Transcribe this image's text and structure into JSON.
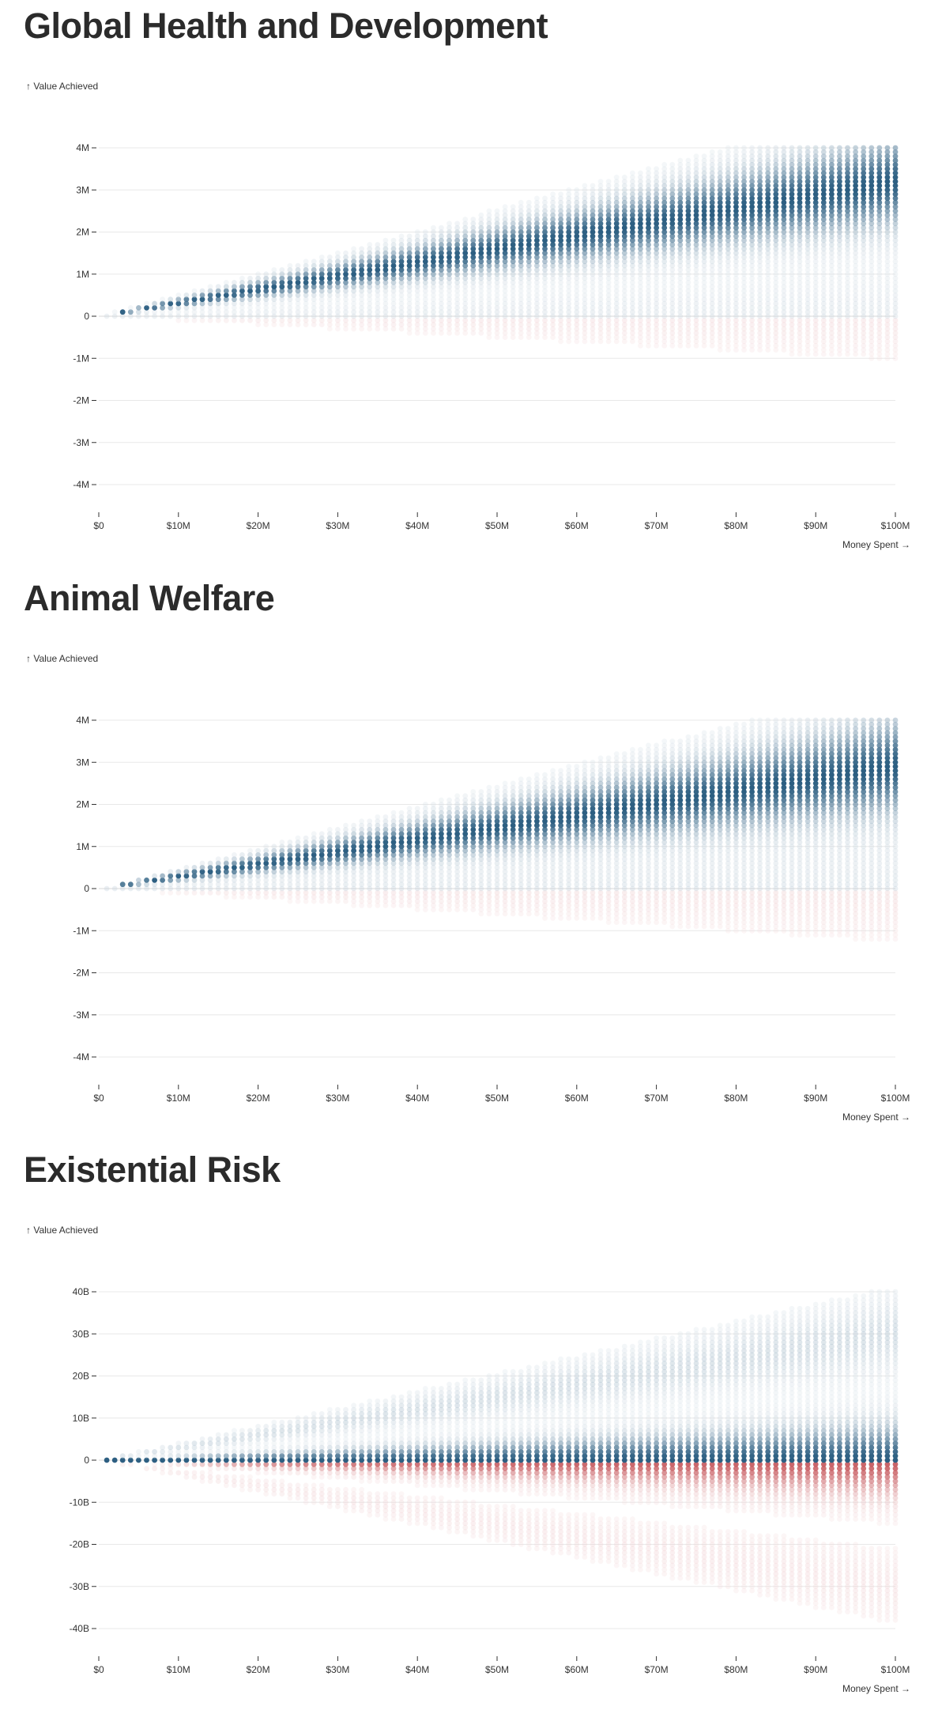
{
  "chart_data": [
    {
      "type": "scatter",
      "title": "Global Health and Development",
      "ylabel": "↑ Value Achieved",
      "xlabel": "Money Spent →",
      "xlim": [
        0,
        100000000
      ],
      "ylim": [
        -4000000,
        4000000
      ],
      "x_ticks": [
        "$0",
        "$10M",
        "$20M",
        "$30M",
        "$40M",
        "$50M",
        "$60M",
        "$70M",
        "$80M",
        "$90M",
        "$100M"
      ],
      "y_ticks": [
        "4M",
        "3M",
        "2M",
        "1M",
        "0",
        "-1M",
        "-2M",
        "-3M",
        "-4M"
      ],
      "y_tick_values": [
        4000000,
        3000000,
        2000000,
        1000000,
        0,
        -1000000,
        -2000000,
        -3000000,
        -4000000
      ],
      "x_step": 1000000,
      "distribution": {
        "modes": [
          {
            "center_per_dollar": 0.032,
            "sd_per_dollar": 0.0075,
            "sign": "positive",
            "weight": 1.0
          },
          {
            "center_per_dollar": 0.0,
            "sd_per_dollar": 0.007,
            "sign": "mixed",
            "weight": 0.12
          }
        ]
      },
      "colors": {
        "positive": "#2d5f82",
        "negative": "#c0464b"
      }
    },
    {
      "type": "scatter",
      "title": "Animal Welfare",
      "ylabel": "↑ Value Achieved",
      "xlabel": "Money Spent →",
      "xlim": [
        0,
        100000000
      ],
      "ylim": [
        -4000000,
        4000000
      ],
      "x_ticks": [
        "$0",
        "$10M",
        "$20M",
        "$30M",
        "$40M",
        "$50M",
        "$60M",
        "$70M",
        "$80M",
        "$90M",
        "$100M"
      ],
      "y_ticks": [
        "4M",
        "3M",
        "2M",
        "1M",
        "0",
        "-1M",
        "-2M",
        "-3M",
        "-4M"
      ],
      "y_tick_values": [
        4000000,
        3000000,
        2000000,
        1000000,
        0,
        -1000000,
        -2000000,
        -3000000,
        -4000000
      ],
      "x_step": 1000000,
      "distribution": {
        "modes": [
          {
            "center_per_dollar": 0.029,
            "sd_per_dollar": 0.008,
            "sign": "positive",
            "weight": 1.0
          },
          {
            "center_per_dollar": 0.0,
            "sd_per_dollar": 0.008,
            "sign": "mixed",
            "weight": 0.14
          }
        ]
      },
      "colors": {
        "positive": "#2d5f82",
        "negative": "#c0464b"
      }
    },
    {
      "type": "scatter",
      "title": "Existential Risk",
      "ylabel": "↑ Value Achieved",
      "xlabel": "Money Spent →",
      "xlim": [
        0,
        100000000
      ],
      "ylim": [
        -40000000000,
        40000000000
      ],
      "x_ticks": [
        "$0",
        "$10M",
        "$20M",
        "$30M",
        "$40M",
        "$50M",
        "$60M",
        "$70M",
        "$80M",
        "$90M",
        "$100M"
      ],
      "y_ticks": [
        "40B",
        "30B",
        "20B",
        "10B",
        "0",
        "-10B",
        "-20B",
        "-30B",
        "-40B"
      ],
      "y_tick_values": [
        40000000000,
        30000000000,
        20000000000,
        10000000000,
        0,
        -10000000000,
        -20000000000,
        -30000000000,
        -40000000000
      ],
      "x_step": 1000000,
      "distribution": {
        "modes": [
          {
            "center_per_dollar": 0.0,
            "sd_per_dollar": 60,
            "sign": "positive",
            "weight": 1.0
          },
          {
            "center_per_dollar": 0.0,
            "sd_per_dollar": 60,
            "sign": "negative",
            "weight": 0.9
          },
          {
            "center_per_dollar": 300,
            "sd_per_dollar": 60,
            "sign": "positive",
            "weight": 0.25
          },
          {
            "center_per_dollar": -300,
            "sd_per_dollar": 60,
            "sign": "negative",
            "weight": 0.12
          }
        ]
      },
      "colors": {
        "positive": "#2d5f82",
        "negative": "#c0464b"
      }
    }
  ]
}
